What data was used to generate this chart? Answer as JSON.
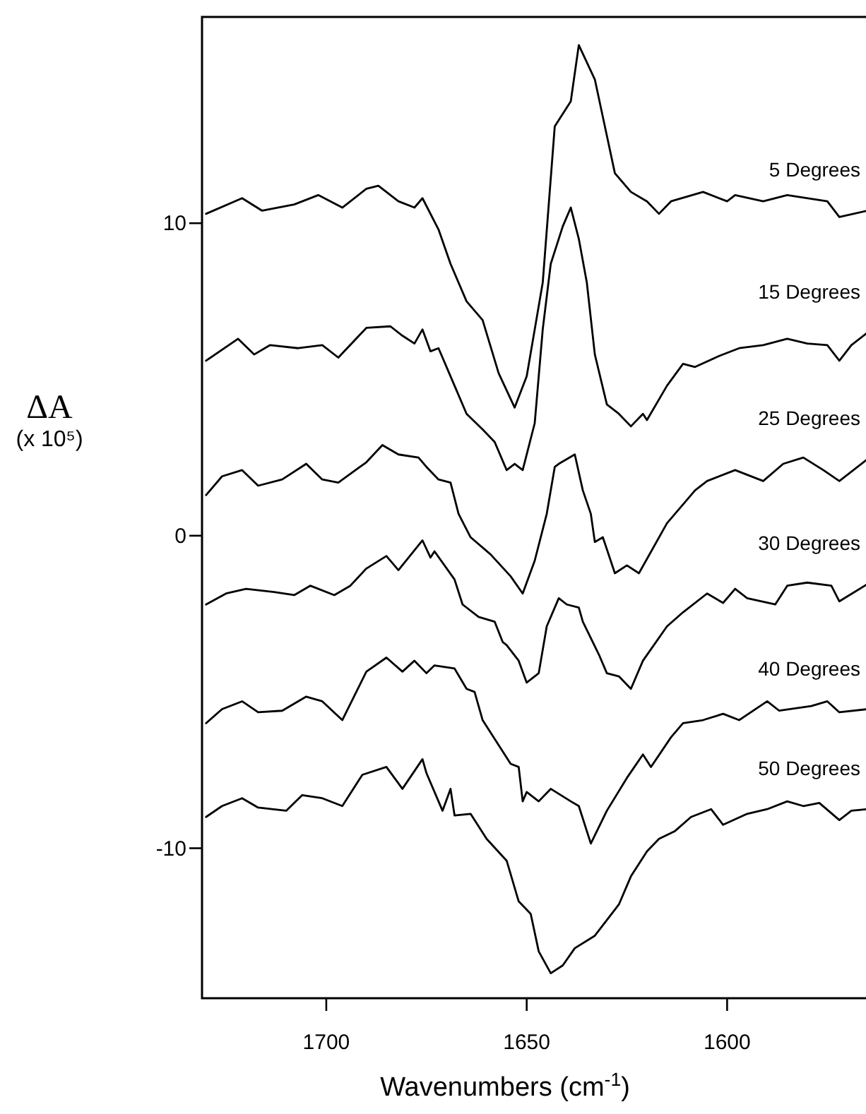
{
  "chart_data": {
    "type": "line",
    "xlabel": "Wavenumbers (cm$^{-1}$)",
    "ylabel": "ΔA\n(x 10⁵)",
    "xlim": [
      1731,
      1565
    ],
    "ylim": [
      -14.8,
      16.6
    ],
    "xticks": [
      1700,
      1650,
      1600
    ],
    "yticks": [
      10,
      0,
      -10
    ],
    "grid": false,
    "series": [
      {
        "name": "5 Degrees",
        "color": "#000000",
        "x": [
          1730,
          1721,
          1716,
          1708,
          1702,
          1696,
          1690,
          1687,
          1682,
          1678,
          1676,
          1672,
          1669,
          1665,
          1661,
          1657,
          1653,
          1650,
          1646,
          1643,
          1639,
          1637,
          1633,
          1630,
          1628,
          1624,
          1620,
          1617,
          1614,
          1606,
          1600,
          1598,
          1591,
          1585,
          1575,
          1572,
          1565
        ],
        "values": [
          10.3,
          10.8,
          10.4,
          10.6,
          10.9,
          10.5,
          11.1,
          11.2,
          10.7,
          10.5,
          10.8,
          9.8,
          8.7,
          7.5,
          6.9,
          5.2,
          4.1,
          5.1,
          8.1,
          13.1,
          13.9,
          15.7,
          14.6,
          12.8,
          11.6,
          11.0,
          10.7,
          10.3,
          10.7,
          11.0,
          10.7,
          10.9,
          10.7,
          10.9,
          10.7,
          10.2,
          10.4
        ]
      },
      {
        "name": "15 Degrees",
        "color": "#000000",
        "x": [
          1730,
          1722,
          1718,
          1714,
          1707,
          1701,
          1697,
          1690,
          1684,
          1681,
          1678,
          1676,
          1674,
          1672,
          1668,
          1665,
          1661,
          1658,
          1655,
          1653,
          1651,
          1648,
          1646,
          1644,
          1641,
          1639,
          1637,
          1635,
          1633,
          1630,
          1627,
          1624,
          1621,
          1620,
          1615,
          1611,
          1608,
          1602,
          1597,
          1591,
          1585,
          1580,
          1575,
          1572,
          1569,
          1565
        ],
        "values": [
          5.6,
          6.3,
          5.8,
          6.1,
          6.0,
          6.1,
          5.7,
          6.65,
          6.7,
          6.4,
          6.15,
          6.6,
          5.9,
          6.0,
          4.8,
          3.9,
          3.4,
          3.0,
          2.1,
          2.3,
          2.1,
          3.6,
          6.6,
          8.7,
          9.9,
          10.5,
          9.5,
          8.1,
          5.8,
          4.2,
          3.9,
          3.5,
          3.9,
          3.7,
          4.8,
          5.5,
          5.4,
          5.75,
          6.0,
          6.1,
          6.3,
          6.15,
          6.1,
          5.6,
          6.1,
          6.5
        ]
      },
      {
        "name": "25 Degrees",
        "color": "#000000",
        "x": [
          1730,
          1726,
          1721,
          1717,
          1711,
          1705,
          1701,
          1697,
          1690,
          1686,
          1682,
          1677,
          1675,
          1672,
          1669,
          1667,
          1664,
          1659,
          1654,
          1651,
          1648,
          1645,
          1643,
          1642,
          1638,
          1636,
          1634,
          1633,
          1631,
          1628,
          1625,
          1622,
          1615,
          1608,
          1605,
          1598,
          1591,
          1586,
          1581,
          1576,
          1572,
          1565
        ],
        "values": [
          1.3,
          1.9,
          2.1,
          1.6,
          1.8,
          2.3,
          1.8,
          1.7,
          2.35,
          2.9,
          2.6,
          2.5,
          2.2,
          1.8,
          1.7,
          0.7,
          -0.05,
          -0.6,
          -1.3,
          -1.85,
          -0.8,
          0.7,
          2.2,
          2.3,
          2.6,
          1.45,
          0.7,
          -0.2,
          -0.05,
          -1.2,
          -0.95,
          -1.2,
          0.4,
          1.45,
          1.75,
          2.1,
          1.75,
          2.3,
          2.5,
          2.1,
          1.75,
          2.45
        ]
      },
      {
        "name": "30 Degrees",
        "color": "#000000",
        "x": [
          1730,
          1725,
          1720,
          1713,
          1708,
          1704,
          1698,
          1694,
          1690,
          1685,
          1682,
          1676,
          1674,
          1673,
          1668,
          1666,
          1662,
          1658,
          1656,
          1655,
          1652,
          1650,
          1647,
          1645,
          1642,
          1640,
          1637,
          1636,
          1632,
          1630,
          1627,
          1624,
          1621,
          1615,
          1611,
          1605,
          1601,
          1598,
          1595,
          1588,
          1585,
          1580,
          1574,
          1572,
          1565
        ],
        "values": [
          -2.2,
          -1.85,
          -1.7,
          -1.8,
          -1.9,
          -1.6,
          -1.9,
          -1.6,
          -1.05,
          -0.65,
          -1.1,
          -0.15,
          -0.7,
          -0.5,
          -1.4,
          -2.2,
          -2.6,
          -2.75,
          -3.4,
          -3.5,
          -4.0,
          -4.7,
          -4.4,
          -2.9,
          -2.0,
          -2.2,
          -2.3,
          -2.75,
          -3.8,
          -4.4,
          -4.5,
          -4.9,
          -4.0,
          -2.9,
          -2.45,
          -1.85,
          -2.15,
          -1.7,
          -2.0,
          -2.2,
          -1.6,
          -1.5,
          -1.6,
          -2.1,
          -1.55
        ]
      },
      {
        "name": "40 Degrees",
        "color": "#000000",
        "x": [
          1730,
          1726,
          1721,
          1717,
          1711,
          1705,
          1701,
          1696,
          1690,
          1685,
          1681,
          1678,
          1675,
          1673,
          1668,
          1665,
          1663,
          1661,
          1659,
          1654,
          1652,
          1651,
          1650,
          1647,
          1644,
          1639,
          1637,
          1634,
          1630,
          1625,
          1621,
          1619,
          1614,
          1611,
          1606,
          1601,
          1597,
          1590,
          1587,
          1579,
          1575,
          1572,
          1565
        ],
        "values": [
          -6.0,
          -5.55,
          -5.3,
          -5.65,
          -5.6,
          -5.15,
          -5.3,
          -5.9,
          -4.35,
          -3.9,
          -4.35,
          -4.0,
          -4.4,
          -4.15,
          -4.25,
          -4.9,
          -5.0,
          -5.9,
          -6.3,
          -7.3,
          -7.4,
          -8.5,
          -8.2,
          -8.5,
          -8.1,
          -8.5,
          -8.65,
          -9.85,
          -8.8,
          -7.75,
          -7.0,
          -7.4,
          -6.45,
          -6.0,
          -5.9,
          -5.7,
          -5.9,
          -5.3,
          -5.6,
          -5.45,
          -5.3,
          -5.65,
          -5.55
        ]
      },
      {
        "name": "50 Degrees",
        "color": "#000000",
        "x": [
          1730,
          1726,
          1721,
          1717,
          1710,
          1706,
          1701,
          1696,
          1691,
          1685,
          1681,
          1676,
          1675,
          1671,
          1669,
          1668,
          1664,
          1660,
          1655,
          1652,
          1649,
          1647,
          1644,
          1641,
          1638,
          1633,
          1627,
          1624,
          1620,
          1617,
          1613,
          1609,
          1604,
          1601,
          1595,
          1590,
          1585,
          1581,
          1577,
          1572,
          1569,
          1565
        ],
        "values": [
          -9.0,
          -8.65,
          -8.4,
          -8.7,
          -8.8,
          -8.3,
          -8.4,
          -8.65,
          -7.65,
          -7.4,
          -8.1,
          -7.15,
          -7.6,
          -8.8,
          -8.1,
          -8.95,
          -8.9,
          -9.7,
          -10.4,
          -11.7,
          -12.1,
          -13.3,
          -14.0,
          -13.75,
          -13.2,
          -12.8,
          -11.8,
          -10.9,
          -10.1,
          -9.7,
          -9.45,
          -9.0,
          -8.75,
          -9.25,
          -8.9,
          -8.75,
          -8.5,
          -8.65,
          -8.55,
          -9.1,
          -8.8,
          -8.75
        ]
      }
    ]
  }
}
